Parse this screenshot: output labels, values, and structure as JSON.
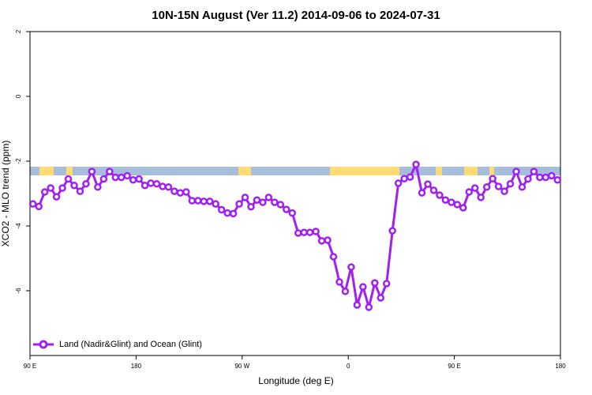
{
  "chart_data": {
    "type": "line",
    "title": "10N-15N August (Ver 11.2)   2014-09-06 to 2024-07-31",
    "x_label": "Longitude (deg E)",
    "y_label": "XCO2 - MLO trend (ppm)",
    "xlim": [
      90,
      540
    ],
    "xticks": [
      {
        "value": 90,
        "label": "90 E"
      },
      {
        "value": 180,
        "label": "180"
      },
      {
        "value": 270,
        "label": "90 W"
      },
      {
        "value": 360,
        "label": "0"
      },
      {
        "value": 450,
        "label": "90 E"
      },
      {
        "value": 540,
        "label": "180"
      }
    ],
    "ylim": [
      -8,
      2
    ],
    "yticks": [
      2,
      0,
      -2,
      -4,
      -6
    ],
    "legend": "bottom-left",
    "x": [
      92.5,
      97.5,
      102.5,
      107.5,
      112.5,
      117.5,
      122.5,
      127.5,
      132.5,
      137.5,
      142.5,
      147.5,
      152.5,
      157.5,
      162.5,
      167.5,
      172.5,
      177.5,
      182.5,
      187.5,
      192.5,
      197.5,
      202.5,
      207.5,
      212.5,
      217.5,
      222.5,
      227.5,
      232.5,
      237.5,
      242.5,
      247.5,
      252.5,
      257.5,
      262.5,
      267.5,
      272.5,
      277.5,
      282.5,
      287.5,
      292.5,
      297.5,
      302.5,
      307.5,
      312.5,
      317.5,
      322.5,
      327.5,
      332.5,
      337.5,
      342.5,
      347.5,
      352.5,
      357.5,
      362.5,
      367.5,
      372.5,
      377.5,
      382.5,
      387.5,
      392.5,
      397.5,
      402.5,
      407.5,
      412.5,
      417.5,
      422.5,
      427.5,
      432.5,
      437.5,
      442.5,
      447.5,
      452.5,
      457.5,
      462.5,
      467.5,
      472.5,
      477.5,
      482.5,
      487.5,
      492.5,
      497.5,
      502.5,
      507.5,
      512.5,
      517.5,
      522.5,
      527.5,
      532.5,
      537.5
    ],
    "series": [
      {
        "name": "Land (Nadir&Glint) and Ocean (Glint)",
        "color": "#a020f0",
        "values": [
          -3.32,
          -3.4,
          -2.95,
          -2.83,
          -3.1,
          -2.83,
          -2.55,
          -2.75,
          -2.93,
          -2.7,
          -2.32,
          -2.8,
          -2.55,
          -2.32,
          -2.5,
          -2.5,
          -2.45,
          -2.58,
          -2.55,
          -2.75,
          -2.68,
          -2.7,
          -2.78,
          -2.8,
          -2.93,
          -2.98,
          -2.95,
          -3.22,
          -3.22,
          -3.24,
          -3.24,
          -3.32,
          -3.5,
          -3.6,
          -3.62,
          -3.32,
          -3.12,
          -3.41,
          -3.2,
          -3.27,
          -3.12,
          -3.27,
          -3.34,
          -3.49,
          -3.6,
          -4.22,
          -4.2,
          -4.2,
          -4.17,
          -4.46,
          -4.44,
          -4.95,
          -5.73,
          -6.02,
          -5.27,
          -6.44,
          -5.88,
          -6.51,
          -5.76,
          -6.22,
          -5.78,
          -4.15,
          -2.68,
          -2.54,
          -2.49,
          -2.1,
          -2.98,
          -2.71,
          -2.9,
          -3.05,
          -3.2,
          -3.27,
          -3.34,
          -3.44,
          -2.95,
          -2.83,
          -3.12,
          -2.8,
          -2.54,
          -2.78,
          -2.93,
          -2.7,
          -2.32,
          -2.8,
          -2.55,
          -2.32,
          -2.5,
          -2.5,
          -2.45,
          -2.58
        ]
      }
    ]
  }
}
